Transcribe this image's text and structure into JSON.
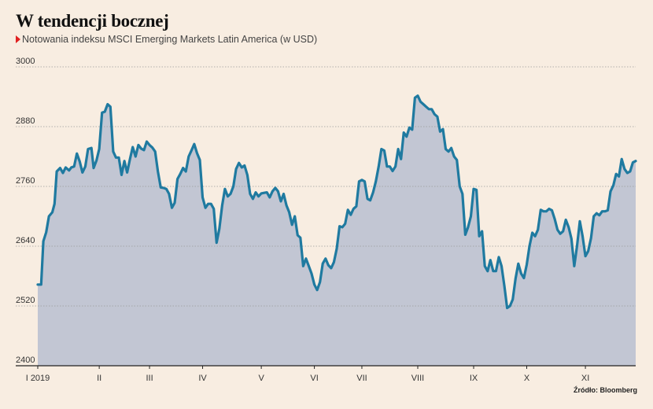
{
  "header": {
    "title": "W tendencji bocznej",
    "subtitle": "Notowania indeksu MSCI Emerging Markets Latin America (w USD)"
  },
  "footer": {
    "source": "Źródło: Bloomberg"
  },
  "colors": {
    "line": "#1f7aa0",
    "area": "#c2c6d3",
    "background": "#f8ede1",
    "marker": "#e02020"
  },
  "chart_data": {
    "type": "area",
    "title": "W tendencji bocznej",
    "subtitle": "Notowania indeksu MSCI Emerging Markets Latin America (w USD)",
    "ylim": [
      2400,
      3000
    ],
    "yticks": [
      2400,
      2520,
      2640,
      2760,
      2880,
      3000
    ],
    "grid": true,
    "x_tick_labels": [
      "I 2019",
      "II",
      "III",
      "IV",
      "V",
      "VI",
      "VII",
      "VIII",
      "IX",
      "X",
      "XI"
    ],
    "x_tick_positions": [
      0,
      11,
      20,
      29.5,
      40,
      49.5,
      58,
      68,
      78,
      87.5,
      98
    ],
    "x_range": [
      0,
      107
    ],
    "series": [
      {
        "values": [
          [
            0,
            2563
          ],
          [
            0.6,
            2563
          ],
          [
            1,
            2650
          ],
          [
            1.5,
            2668
          ],
          [
            2,
            2700
          ],
          [
            2.6,
            2708
          ],
          [
            3,
            2725
          ],
          [
            3.4,
            2790
          ],
          [
            4,
            2797
          ],
          [
            4.5,
            2787
          ],
          [
            5,
            2798
          ],
          [
            5.6,
            2792
          ],
          [
            6,
            2798
          ],
          [
            6.5,
            2800
          ],
          [
            7,
            2826
          ],
          [
            7.5,
            2810
          ],
          [
            8,
            2788
          ],
          [
            8.5,
            2800
          ],
          [
            9,
            2835
          ],
          [
            9.6,
            2837
          ],
          [
            10,
            2797
          ],
          [
            10.5,
            2812
          ],
          [
            11,
            2835
          ],
          [
            11.5,
            2908
          ],
          [
            12,
            2910
          ],
          [
            12.5,
            2925
          ],
          [
            13,
            2920
          ],
          [
            13.5,
            2830
          ],
          [
            14,
            2818
          ],
          [
            14.5,
            2818
          ],
          [
            15,
            2783
          ],
          [
            15.5,
            2811
          ],
          [
            16,
            2788
          ],
          [
            16.5,
            2815
          ],
          [
            17,
            2839
          ],
          [
            17.5,
            2820
          ],
          [
            18,
            2843
          ],
          [
            18.5,
            2836
          ],
          [
            19,
            2833
          ],
          [
            19.5,
            2850
          ],
          [
            20,
            2843
          ],
          [
            20.5,
            2838
          ],
          [
            21,
            2830
          ],
          [
            21.5,
            2790
          ],
          [
            22,
            2758
          ],
          [
            22.5,
            2757
          ],
          [
            23,
            2755
          ],
          [
            23.5,
            2745
          ],
          [
            24,
            2717
          ],
          [
            24.5,
            2727
          ],
          [
            25,
            2775
          ],
          [
            25.5,
            2785
          ],
          [
            26,
            2797
          ],
          [
            26.5,
            2790
          ],
          [
            27,
            2820
          ],
          [
            27.5,
            2832
          ],
          [
            28,
            2845
          ],
          [
            28.5,
            2827
          ],
          [
            29,
            2813
          ],
          [
            29.5,
            2738
          ],
          [
            30,
            2717
          ],
          [
            30.5,
            2725
          ],
          [
            31,
            2725
          ],
          [
            31.5,
            2715
          ],
          [
            32,
            2647
          ],
          [
            32.5,
            2675
          ],
          [
            33,
            2722
          ],
          [
            33.5,
            2755
          ],
          [
            34,
            2740
          ],
          [
            34.5,
            2745
          ],
          [
            35,
            2760
          ],
          [
            35.5,
            2795
          ],
          [
            36,
            2807
          ],
          [
            36.5,
            2798
          ],
          [
            37,
            2802
          ],
          [
            37.5,
            2783
          ],
          [
            38,
            2745
          ],
          [
            38.5,
            2735
          ],
          [
            39,
            2748
          ],
          [
            39.5,
            2740
          ],
          [
            40,
            2746
          ],
          [
            40.5,
            2747
          ],
          [
            41,
            2748
          ],
          [
            41.5,
            2738
          ],
          [
            42,
            2750
          ],
          [
            42.5,
            2757
          ],
          [
            43,
            2750
          ],
          [
            43.5,
            2730
          ],
          [
            44,
            2745
          ],
          [
            44.5,
            2722
          ],
          [
            45,
            2708
          ],
          [
            45.5,
            2683
          ],
          [
            46,
            2700
          ],
          [
            46.5,
            2662
          ],
          [
            47,
            2657
          ],
          [
            47.5,
            2600
          ],
          [
            48,
            2615
          ],
          [
            48.5,
            2600
          ],
          [
            49,
            2585
          ],
          [
            49.5,
            2563
          ],
          [
            50,
            2552
          ],
          [
            50.5,
            2568
          ],
          [
            51,
            2605
          ],
          [
            51.5,
            2615
          ],
          [
            52,
            2602
          ],
          [
            52.5,
            2596
          ],
          [
            53,
            2608
          ],
          [
            53.5,
            2635
          ],
          [
            54,
            2680
          ],
          [
            54.5,
            2678
          ],
          [
            55,
            2685
          ],
          [
            55.5,
            2713
          ],
          [
            56,
            2703
          ],
          [
            56.5,
            2715
          ],
          [
            57,
            2720
          ],
          [
            57.5,
            2770
          ],
          [
            58,
            2773
          ],
          [
            58.5,
            2770
          ],
          [
            59,
            2735
          ],
          [
            59.5,
            2732
          ],
          [
            60,
            2748
          ],
          [
            60.5,
            2770
          ],
          [
            61,
            2800
          ],
          [
            61.5,
            2835
          ],
          [
            62,
            2832
          ],
          [
            62.5,
            2800
          ],
          [
            63,
            2800
          ],
          [
            63.5,
            2791
          ],
          [
            64,
            2800
          ],
          [
            64.5,
            2835
          ],
          [
            65,
            2815
          ],
          [
            65.5,
            2868
          ],
          [
            66,
            2860
          ],
          [
            66.5,
            2878
          ],
          [
            67,
            2874
          ],
          [
            67.5,
            2938
          ],
          [
            68,
            2942
          ],
          [
            68.5,
            2930
          ],
          [
            69,
            2925
          ],
          [
            69.5,
            2920
          ],
          [
            70,
            2915
          ],
          [
            70.5,
            2915
          ],
          [
            71,
            2905
          ],
          [
            71.5,
            2900
          ],
          [
            72,
            2870
          ],
          [
            72.5,
            2875
          ],
          [
            73,
            2835
          ],
          [
            73.5,
            2830
          ],
          [
            74,
            2837
          ],
          [
            74.5,
            2820
          ],
          [
            75,
            2813
          ],
          [
            75.5,
            2760
          ],
          [
            76,
            2745
          ],
          [
            76.5,
            2663
          ],
          [
            77,
            2678
          ],
          [
            77.5,
            2700
          ],
          [
            78,
            2755
          ],
          [
            78.5,
            2753
          ],
          [
            79,
            2660
          ],
          [
            79.5,
            2670
          ],
          [
            80,
            2600
          ],
          [
            80.5,
            2590
          ],
          [
            81,
            2612
          ],
          [
            81.5,
            2590
          ],
          [
            82,
            2590
          ],
          [
            82.5,
            2618
          ],
          [
            83,
            2600
          ],
          [
            83.5,
            2560
          ],
          [
            84,
            2516
          ],
          [
            84.5,
            2520
          ],
          [
            85,
            2533
          ],
          [
            85.5,
            2575
          ],
          [
            86,
            2605
          ],
          [
            86.5,
            2585
          ],
          [
            87,
            2576
          ],
          [
            87.5,
            2603
          ],
          [
            88,
            2640
          ],
          [
            88.5,
            2667
          ],
          [
            89,
            2660
          ],
          [
            89.5,
            2673
          ],
          [
            90,
            2713
          ],
          [
            90.5,
            2710
          ],
          [
            91,
            2710
          ],
          [
            91.5,
            2715
          ],
          [
            92,
            2712
          ],
          [
            92.5,
            2695
          ],
          [
            93,
            2673
          ],
          [
            93.5,
            2665
          ],
          [
            94,
            2670
          ],
          [
            94.5,
            2693
          ],
          [
            95,
            2678
          ],
          [
            95.5,
            2655
          ],
          [
            96,
            2600
          ],
          [
            96.5,
            2640
          ],
          [
            97,
            2690
          ],
          [
            97.5,
            2660
          ],
          [
            98,
            2620
          ],
          [
            98.5,
            2630
          ],
          [
            99,
            2656
          ],
          [
            99.5,
            2700
          ],
          [
            100,
            2706
          ],
          [
            100.5,
            2702
          ],
          [
            101,
            2710
          ],
          [
            101.5,
            2710
          ],
          [
            102,
            2712
          ],
          [
            102.5,
            2750
          ],
          [
            103,
            2762
          ],
          [
            103.5,
            2785
          ],
          [
            104,
            2780
          ],
          [
            104.5,
            2815
          ],
          [
            105,
            2795
          ],
          [
            105.5,
            2787
          ],
          [
            106,
            2790
          ],
          [
            106.5,
            2808
          ],
          [
            107,
            2811
          ]
        ]
      }
    ]
  }
}
